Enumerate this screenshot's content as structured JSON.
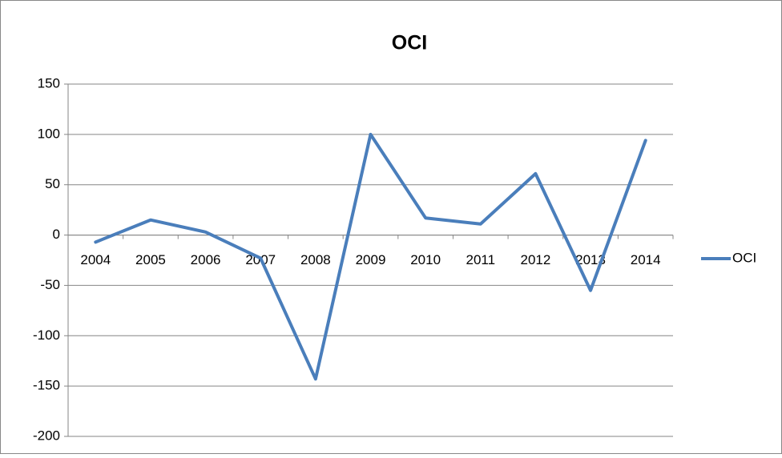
{
  "chart_data": {
    "type": "line",
    "title": "OCI",
    "categories": [
      "2004",
      "2005",
      "2006",
      "2007",
      "2008",
      "2009",
      "2010",
      "2011",
      "2012",
      "2013",
      "2014"
    ],
    "series": [
      {
        "name": "OCI",
        "color": "#4a7ebb",
        "values": [
          -7,
          15,
          3,
          -23,
          -143,
          100,
          17,
          11,
          61,
          -55,
          94
        ]
      }
    ],
    "ylim": [
      -200,
      150
    ],
    "yticks": [
      -200,
      -150,
      -100,
      -50,
      0,
      50,
      100,
      150
    ],
    "grid": true,
    "legend": "right"
  }
}
